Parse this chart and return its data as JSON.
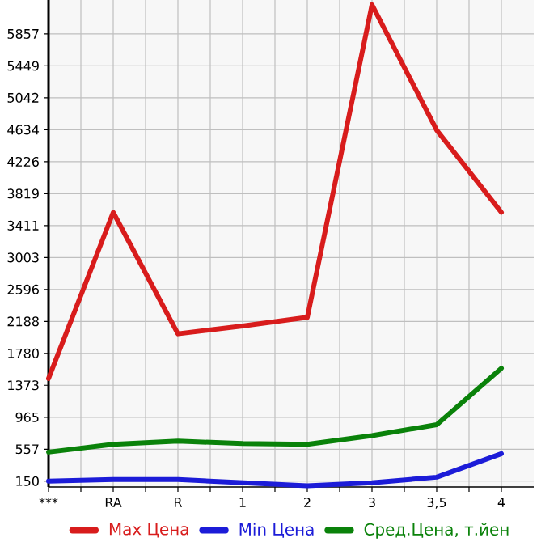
{
  "chart_data": {
    "type": "line",
    "categories": [
      "***",
      "RA",
      "R",
      "1",
      "2",
      "3",
      "3,5",
      "4"
    ],
    "series": [
      {
        "name": "Max Цена",
        "color": "#d81c1c",
        "values": [
          1460,
          3580,
          2030,
          2130,
          2240,
          6230,
          4630,
          3580
        ]
      },
      {
        "name": "Min Цена",
        "color": "#1c1cd8",
        "values": [
          150,
          170,
          170,
          130,
          90,
          130,
          200,
          500
        ]
      },
      {
        "name": "Сред.Цена, т.йен",
        "color": "#0a820a",
        "values": [
          520,
          620,
          660,
          630,
          620,
          730,
          870,
          1590
        ]
      }
    ],
    "ylim": [
      75,
      6290
    ],
    "yticks": [
      150,
      557,
      965,
      1373,
      1780,
      2188,
      2596,
      3003,
      3411,
      3819,
      4226,
      4634,
      5042,
      5449,
      5857
    ],
    "grid": true,
    "legend": "bottom",
    "marker": "none",
    "line_style": "solid"
  }
}
